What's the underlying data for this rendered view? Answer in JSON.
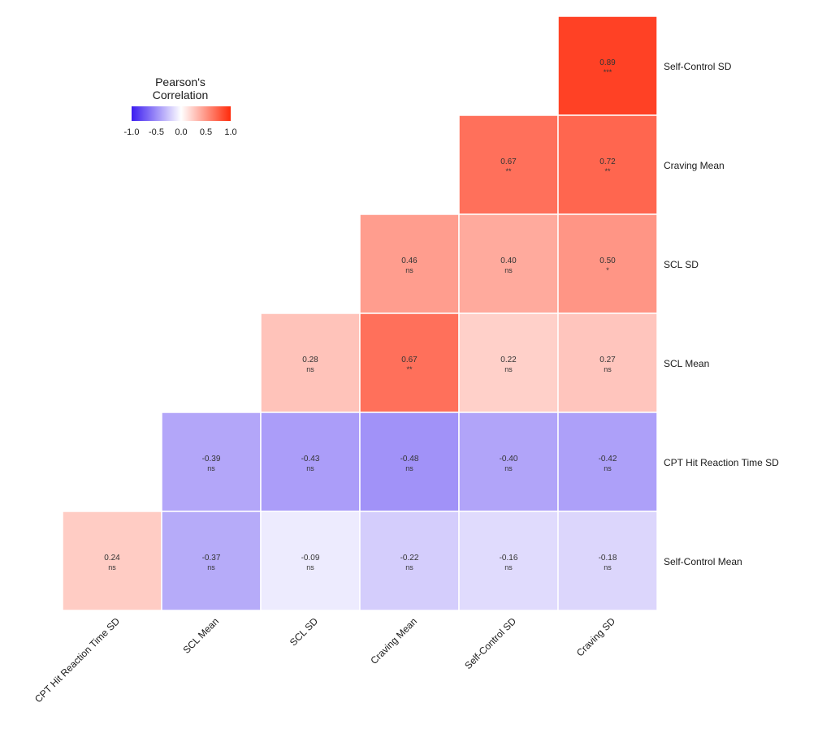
{
  "chart_data": {
    "type": "heatmap",
    "legend": {
      "title_line1": "Pearson's",
      "title_line2": "Correlation",
      "ticks": [
        "-1.0",
        "-0.5",
        "0.0",
        "0.5",
        "1.0"
      ],
      "range": [
        -1.0,
        1.0
      ],
      "low_color": "#3b1cf0",
      "mid_color": "#ffffff",
      "high_color": "#ff2a0a",
      "placement": "top-left"
    },
    "x_labels": [
      "CPT Hit Reaction Time SD",
      "SCL Mean",
      "SCL SD",
      "Craving Mean",
      "Self-Control SD",
      "Craving SD"
    ],
    "y_labels": [
      "Self-Control SD",
      "Craving Mean",
      "SCL SD",
      "SCL Mean",
      "CPT Hit Reaction Time SD",
      "Self-Control Mean"
    ],
    "cells": [
      {
        "row": 0,
        "col": 5,
        "value": 0.89,
        "label": "0.89",
        "sig": "***"
      },
      {
        "row": 1,
        "col": 4,
        "value": 0.67,
        "label": "0.67",
        "sig": "**"
      },
      {
        "row": 1,
        "col": 5,
        "value": 0.72,
        "label": "0.72",
        "sig": "**"
      },
      {
        "row": 2,
        "col": 3,
        "value": 0.46,
        "label": "0.46",
        "sig": "ns"
      },
      {
        "row": 2,
        "col": 4,
        "value": 0.4,
        "label": "0.40",
        "sig": "ns"
      },
      {
        "row": 2,
        "col": 5,
        "value": 0.5,
        "label": "0.50",
        "sig": "*"
      },
      {
        "row": 3,
        "col": 2,
        "value": 0.28,
        "label": "0.28",
        "sig": "ns"
      },
      {
        "row": 3,
        "col": 3,
        "value": 0.67,
        "label": "0.67",
        "sig": "**"
      },
      {
        "row": 3,
        "col": 4,
        "value": 0.22,
        "label": "0.22",
        "sig": "ns"
      },
      {
        "row": 3,
        "col": 5,
        "value": 0.27,
        "label": "0.27",
        "sig": "ns"
      },
      {
        "row": 4,
        "col": 1,
        "value": -0.39,
        "label": "-0.39",
        "sig": "ns"
      },
      {
        "row": 4,
        "col": 2,
        "value": -0.43,
        "label": "-0.43",
        "sig": "ns"
      },
      {
        "row": 4,
        "col": 3,
        "value": -0.48,
        "label": "-0.48",
        "sig": "ns"
      },
      {
        "row": 4,
        "col": 4,
        "value": -0.4,
        "label": "-0.40",
        "sig": "ns"
      },
      {
        "row": 4,
        "col": 5,
        "value": -0.42,
        "label": "-0.42",
        "sig": "ns"
      },
      {
        "row": 5,
        "col": 0,
        "value": 0.24,
        "label": "0.24",
        "sig": "ns"
      },
      {
        "row": 5,
        "col": 1,
        "value": -0.37,
        "label": "-0.37",
        "sig": "ns"
      },
      {
        "row": 5,
        "col": 2,
        "value": -0.09,
        "label": "-0.09",
        "sig": "ns"
      },
      {
        "row": 5,
        "col": 3,
        "value": -0.22,
        "label": "-0.22",
        "sig": "ns"
      },
      {
        "row": 5,
        "col": 4,
        "value": -0.16,
        "label": "-0.16",
        "sig": "ns"
      },
      {
        "row": 5,
        "col": 5,
        "value": -0.18,
        "label": "-0.18",
        "sig": "ns"
      }
    ]
  }
}
